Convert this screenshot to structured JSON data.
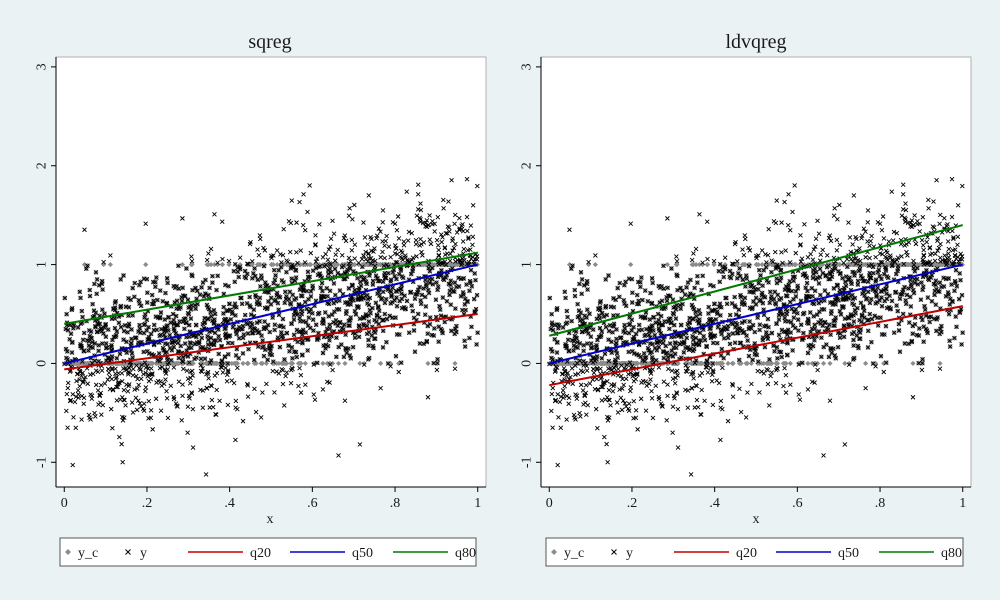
{
  "colors": {
    "background": "#eaf2f3",
    "panel": "#ffffff",
    "y_c": "#8c8c8c",
    "y": "#000000",
    "q20": "#c00000",
    "q50": "#0000c8",
    "q80": "#007a00"
  },
  "chart_data": [
    {
      "type": "scatter",
      "title": "sqreg",
      "xlabel": "x",
      "ylabel": "",
      "xlim": [
        -0.02,
        1.02
      ],
      "ylim": [
        -1.25,
        3.1
      ],
      "xticks": [
        0,
        0.2,
        0.4,
        0.6,
        0.8,
        1
      ],
      "xtick_labels": [
        "0",
        ".2",
        ".4",
        ".6",
        ".8",
        "1"
      ],
      "yticks": [
        -1,
        0,
        1,
        2,
        3
      ],
      "ytick_labels": [
        "-1",
        "0",
        "1",
        "2",
        "3"
      ],
      "grid": false,
      "legend_position": "bottom",
      "legend": [
        "y_c",
        "y",
        "q20",
        "q50",
        "q80"
      ],
      "scatter_model": {
        "points": 1800,
        "x_range": [
          0,
          1
        ],
        "y_mean": [
          0,
          1
        ],
        "y_sd": 0.38,
        "censored_at": [
          0,
          1
        ]
      },
      "series": [
        {
          "name": "y_c",
          "kind": "points",
          "description_values": "y censored to [0,1]"
        },
        {
          "name": "y",
          "kind": "points"
        },
        {
          "name": "q20",
          "kind": "line",
          "x": [
            0,
            1
          ],
          "y": [
            -0.06,
            0.5
          ]
        },
        {
          "name": "q50",
          "kind": "line",
          "x": [
            0,
            1
          ],
          "y": [
            0.0,
            1.0
          ]
        },
        {
          "name": "q80",
          "kind": "line",
          "x": [
            0,
            1
          ],
          "y": [
            0.4,
            1.12
          ]
        }
      ]
    },
    {
      "type": "scatter",
      "title": "ldvqreg",
      "xlabel": "x",
      "ylabel": "",
      "xlim": [
        -0.02,
        1.02
      ],
      "ylim": [
        -1.25,
        3.1
      ],
      "xticks": [
        0,
        0.2,
        0.4,
        0.6,
        0.8,
        1
      ],
      "xtick_labels": [
        "0",
        ".2",
        ".4",
        ".6",
        ".8",
        "1"
      ],
      "yticks": [
        -1,
        0,
        1,
        2,
        3
      ],
      "ytick_labels": [
        "-1",
        "0",
        "1",
        "2",
        "3"
      ],
      "grid": false,
      "legend_position": "bottom",
      "legend": [
        "y_c",
        "y",
        "q20",
        "q50",
        "q80"
      ],
      "scatter_model": {
        "points": 1800,
        "x_range": [
          0,
          1
        ],
        "y_mean": [
          0,
          1
        ],
        "y_sd": 0.38,
        "censored_at": [
          0,
          1
        ]
      },
      "series": [
        {
          "name": "y_c",
          "kind": "points"
        },
        {
          "name": "y",
          "kind": "points"
        },
        {
          "name": "q20",
          "kind": "line",
          "x": [
            0,
            1
          ],
          "y": [
            -0.22,
            0.58
          ]
        },
        {
          "name": "q50",
          "kind": "line",
          "x": [
            0,
            1
          ],
          "y": [
            0.0,
            1.0
          ]
        },
        {
          "name": "q80",
          "kind": "line",
          "x": [
            0,
            1
          ],
          "y": [
            0.28,
            1.4
          ]
        }
      ]
    }
  ]
}
